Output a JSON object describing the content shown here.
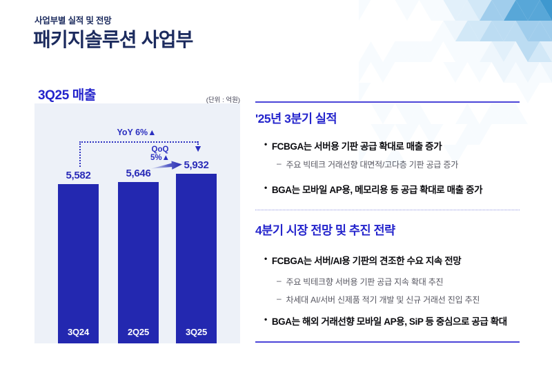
{
  "page": {
    "eyebrow": "사업부별 실적 및 전망",
    "title": "패키지솔루션 사업부"
  },
  "chart": {
    "title": "3Q25 매출",
    "unit": "(단위 : 억원)"
  },
  "chart_data": {
    "type": "bar",
    "title": "3Q25 매출",
    "unit_label": "(단위 : 억원)",
    "categories": [
      "3Q24",
      "2Q25",
      "3Q25"
    ],
    "values": [
      5582,
      5646,
      5932
    ],
    "value_labels": [
      "5,582",
      "5,646",
      "5,932"
    ],
    "ylim": [
      0,
      6200
    ],
    "grid": false,
    "bar_color": "#2328b0",
    "panel_bg": "#edf1f8",
    "annotations": {
      "yoy": "YoY 6%▲",
      "qoq_line1": "QoQ",
      "qoq_line2": "5%▲",
      "arrow_down": "▼"
    }
  },
  "markers": {
    "bullet": "•",
    "dash": "–"
  },
  "right": {
    "sections": [
      {
        "heading": "'25년 3분기 실적",
        "items": [
          {
            "level": 1,
            "text": "FCBGA는 서버용 기판 공급 확대로 매출 증가"
          },
          {
            "level": 2,
            "text": "주요 빅테크 거래선향 대면적/고다층 기판 공급 증가"
          },
          {
            "level": 1,
            "text": "BGA는 모바일 AP용, 메모리용 등 공급 확대로 매출 증가"
          }
        ]
      },
      {
        "heading": "4분기 시장 전망 및 추진 전략",
        "items": [
          {
            "level": 1,
            "text": "FCBGA는 서버/AI용 기판의 견조한 수요 지속 전망"
          },
          {
            "level": 2,
            "text": "주요 빅테크향 서버용 기판 공급 지속 확대 추진"
          },
          {
            "level": 2,
            "text": "차세대 AI/서버 신제품 적기 개발 및 신규 거래선 진입 추진"
          },
          {
            "level": 1,
            "text": "BGA는 해외 거래선향 모바일 AP용, SiP 등 중심으로 공급 확대"
          }
        ]
      }
    ]
  },
  "colors": {
    "title_navy": "#1c2b5e",
    "heading_blue": "#2424cc",
    "bar_blue": "#2328b0",
    "value_blue": "#2a2cb8",
    "rule_blue": "#4a44d8",
    "panel_bg": "#edf1f8",
    "sub_gray": "#565660"
  }
}
